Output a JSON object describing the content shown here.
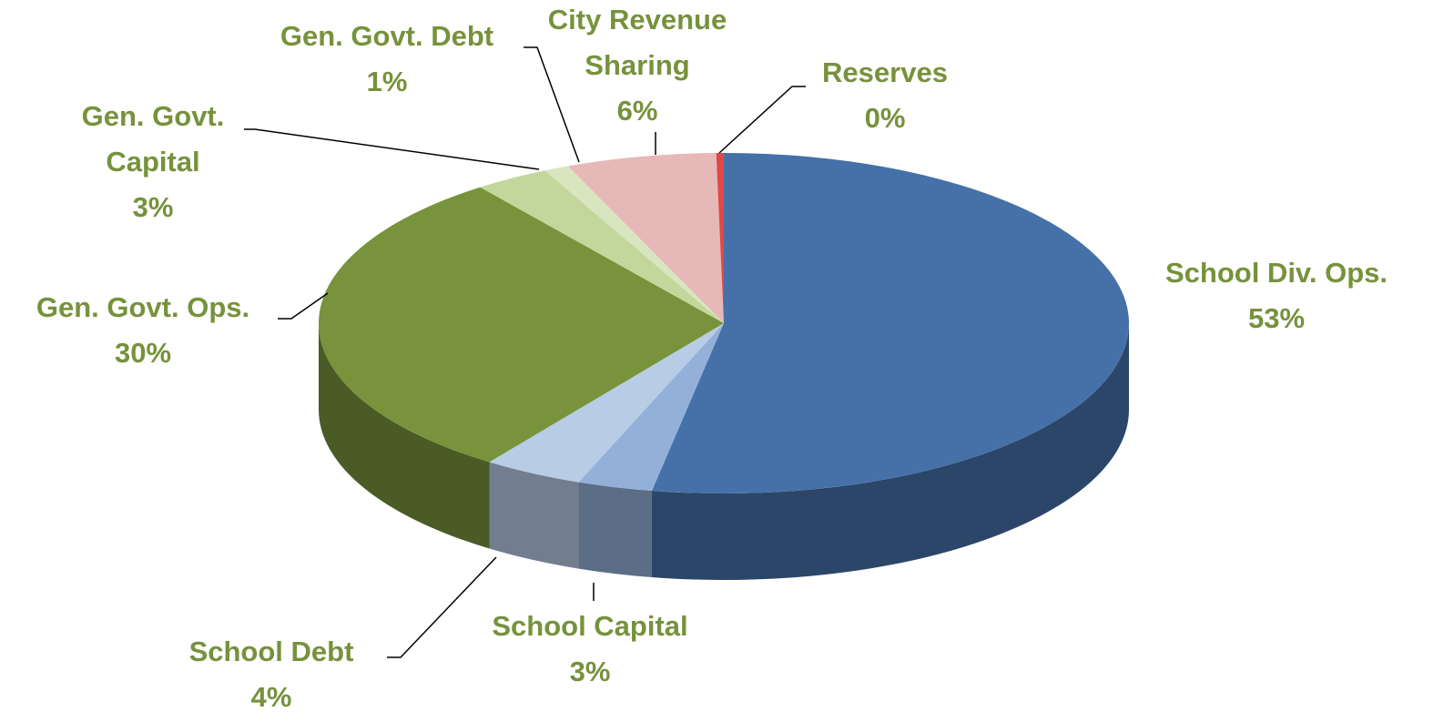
{
  "chart_data": {
    "type": "pie",
    "categories": [
      "School Div. Ops.",
      "School Capital",
      "School Debt",
      "Gen. Govt. Ops.",
      "Gen. Govt. Capital",
      "Gen. Govt. Debt",
      "City Revenue Sharing",
      "Reserves"
    ],
    "values": [
      53,
      3,
      4,
      30,
      3,
      1,
      6,
      0.3
    ],
    "value_labels": [
      "53%",
      "3%",
      "4%",
      "30%",
      "3%",
      "1%",
      "6%",
      "0%"
    ],
    "colors": [
      "#4571a8",
      "#93b1d8",
      "#b8cce6",
      "#78933b",
      "#c3d79c",
      "#d8e5bf",
      "#e6b9b8",
      "#e04848"
    ]
  }
}
